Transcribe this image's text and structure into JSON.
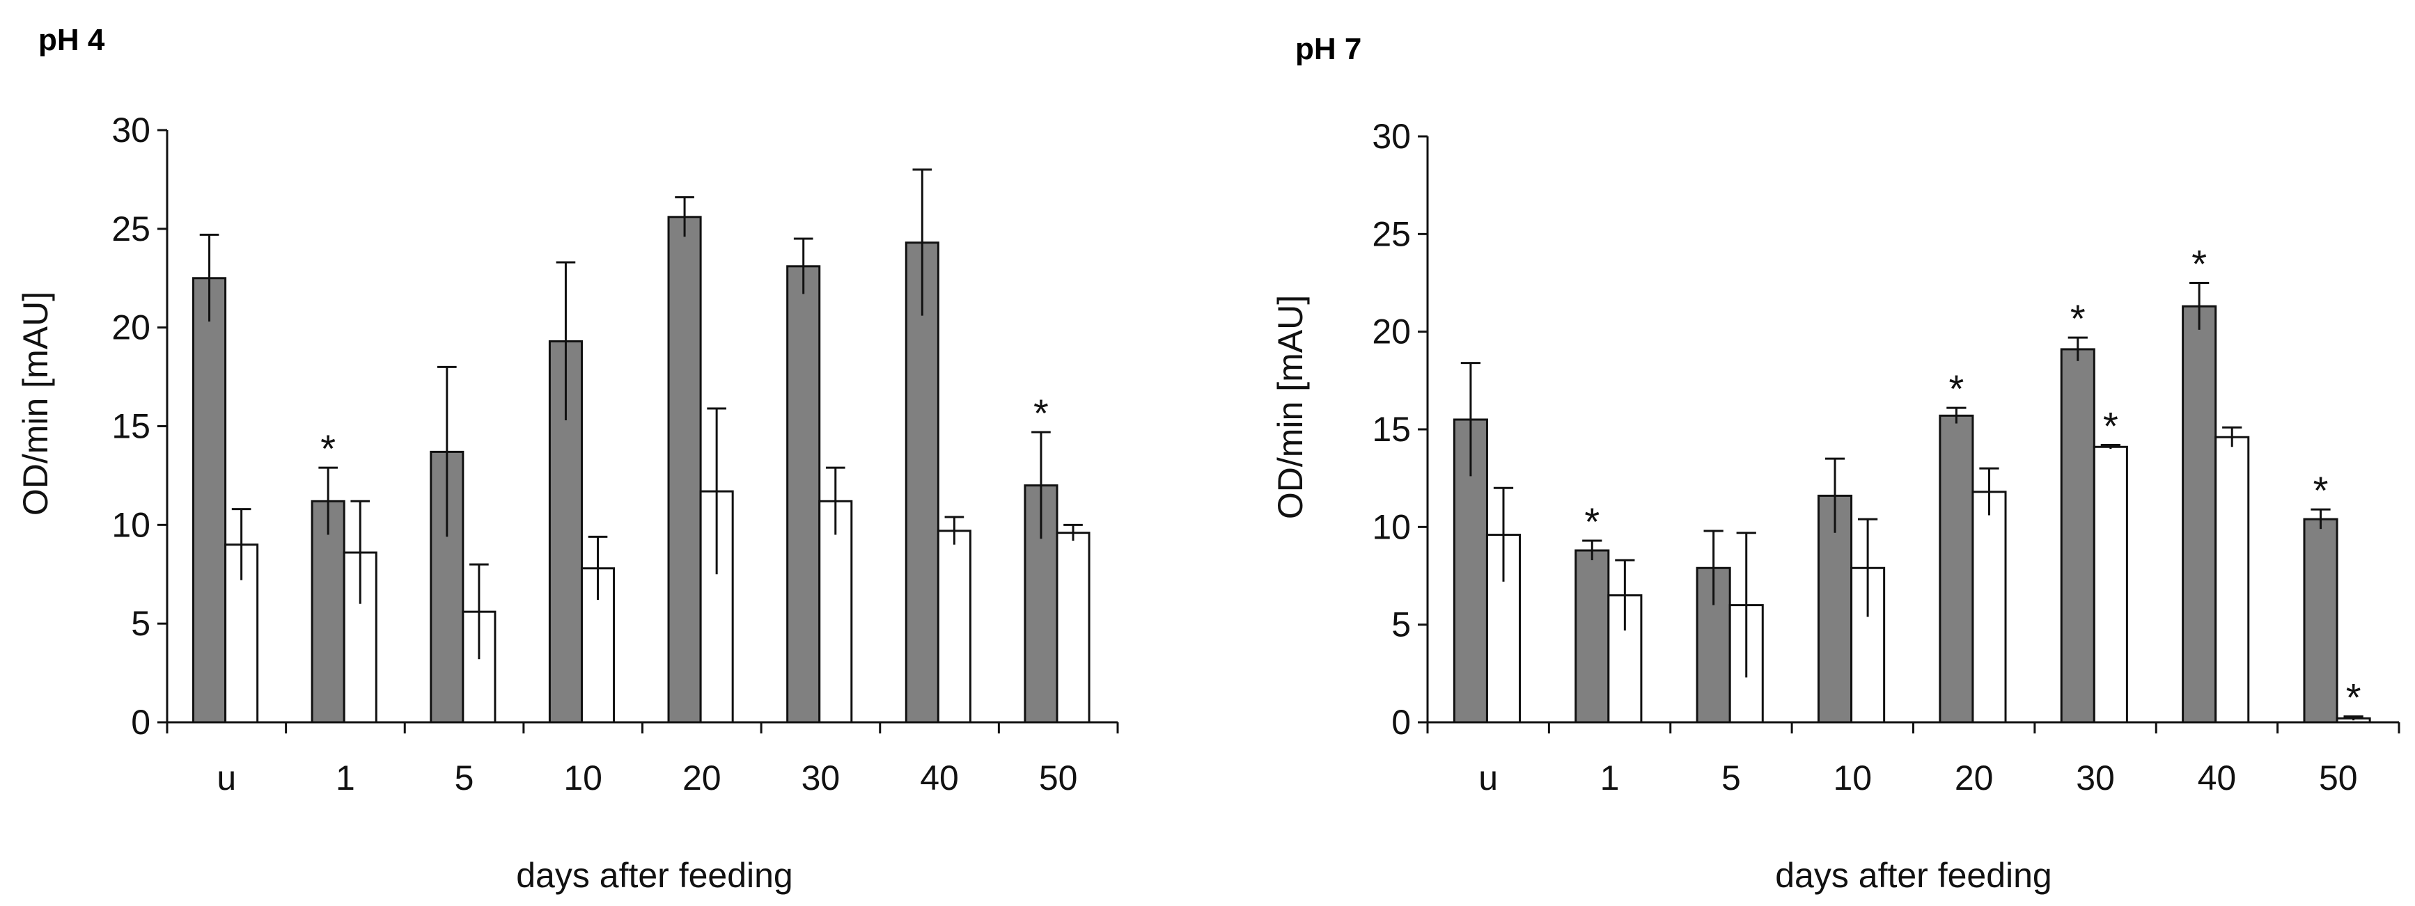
{
  "chart_data": [
    {
      "type": "bar",
      "title": "pH 4",
      "xlabel": "days after feeding",
      "ylabel": "OD/min [mAU]",
      "ylim": [
        0,
        30
      ],
      "yticks": [
        "0",
        "5",
        "10",
        "15",
        "20",
        "25",
        "30"
      ],
      "categories": [
        "u",
        "1",
        "5",
        "10",
        "20",
        "30",
        "40",
        "50"
      ],
      "series": [
        {
          "name": "grey",
          "color": "#808080",
          "values": [
            22.5,
            11.2,
            13.7,
            19.3,
            25.6,
            23.1,
            24.3,
            12.0
          ],
          "errors": [
            2.2,
            1.7,
            4.3,
            4.0,
            1.0,
            1.4,
            3.7,
            2.7
          ],
          "stars": [
            false,
            true,
            false,
            false,
            false,
            false,
            false,
            true
          ]
        },
        {
          "name": "white",
          "color": "#ffffff",
          "values": [
            9.0,
            8.6,
            5.6,
            7.8,
            11.7,
            11.2,
            9.7,
            9.6
          ],
          "errors": [
            1.8,
            2.6,
            2.4,
            1.6,
            4.2,
            1.7,
            0.7,
            0.4
          ],
          "stars": [
            false,
            false,
            false,
            false,
            false,
            false,
            false,
            false
          ]
        }
      ],
      "star_symbol": "*"
    },
    {
      "type": "bar",
      "title": "pH 7",
      "xlabel": "days after feeding",
      "ylabel": "OD/min [mAU]",
      "ylim": [
        0,
        30
      ],
      "yticks": [
        "0",
        "5",
        "10",
        "15",
        "20",
        "25",
        "30"
      ],
      "categories": [
        "u",
        "1",
        "5",
        "10",
        "20",
        "30",
        "40",
        "50"
      ],
      "series": [
        {
          "name": "grey",
          "color": "#808080",
          "values": [
            15.5,
            8.8,
            7.9,
            11.6,
            15.7,
            19.1,
            21.3,
            10.4
          ],
          "errors": [
            2.9,
            0.5,
            1.9,
            1.9,
            0.4,
            0.6,
            1.2,
            0.5
          ],
          "stars": [
            false,
            true,
            false,
            false,
            true,
            true,
            true,
            true
          ]
        },
        {
          "name": "white",
          "color": "#ffffff",
          "values": [
            9.6,
            6.5,
            6.0,
            7.9,
            11.8,
            14.1,
            14.6,
            0.2
          ],
          "errors": [
            2.4,
            1.8,
            3.7,
            2.5,
            1.2,
            0.1,
            0.5,
            0.1
          ],
          "stars": [
            false,
            false,
            false,
            false,
            false,
            true,
            false,
            true
          ]
        }
      ],
      "star_symbol": "*"
    }
  ]
}
